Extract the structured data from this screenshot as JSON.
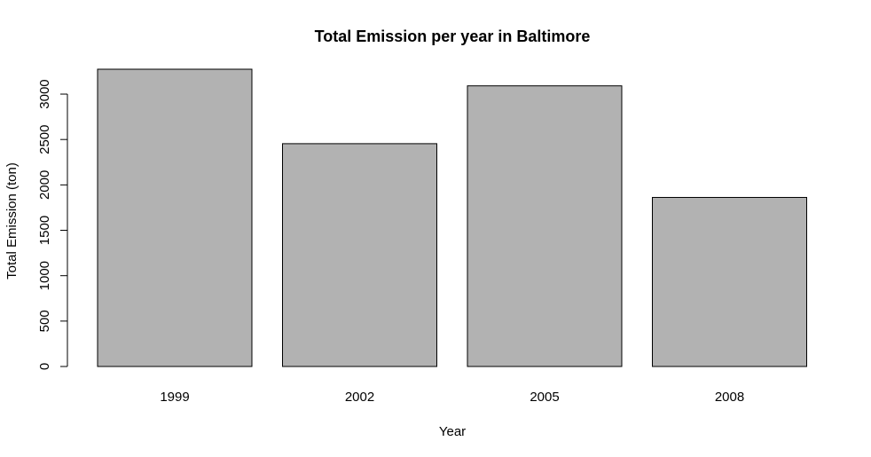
{
  "chart_data": {
    "type": "bar",
    "title": "Total Emission per year in Baltimore",
    "xlabel": "Year",
    "ylabel": "Total Emission (ton)",
    "categories": [
      "1999",
      "2002",
      "2005",
      "2008"
    ],
    "values": [
      3274,
      2454,
      3091,
      1862
    ],
    "yticks": [
      0,
      500,
      1000,
      1500,
      2000,
      2500,
      3000
    ],
    "ylim": [
      0,
      3274
    ],
    "bar_color": "#B2B2B2",
    "grid": false,
    "legend": "none"
  }
}
